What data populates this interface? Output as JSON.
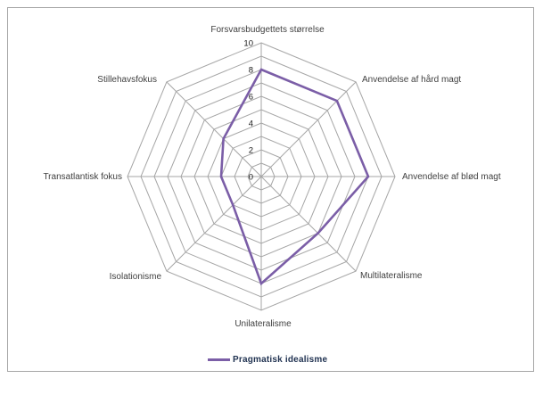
{
  "chart_data": {
    "type": "radar",
    "categories": [
      "Forsvarsbudgettets størrelse",
      "Anvendelse af hård magt",
      "Anvendelse af blød magt",
      "Multilateralisme",
      "Unilateralisme",
      "Isolationisme",
      "Transatlantisk fokus",
      "Stillehavsfokus"
    ],
    "series": [
      {
        "name": "Pragmatisk idealisme",
        "color": "#7B5EA7",
        "values": [
          8,
          8,
          8,
          6,
          8,
          3,
          3,
          4
        ]
      }
    ],
    "axis": {
      "min": 0,
      "max": 10,
      "ring_step": 1,
      "label_step": 2,
      "tick_labels": [
        "0",
        "2",
        "4",
        "6",
        "8",
        "10"
      ]
    },
    "grid": "on",
    "legend": {
      "position": "bottom",
      "entries": [
        {
          "label": "Pragmatisk idealisme",
          "color": "#7B5EA7"
        }
      ]
    }
  },
  "colors": {
    "grid_line": "#A6A6A6",
    "chart_border": "#A6A6A6",
    "category_label": "#404040",
    "tick_label": "#1A1A1A",
    "legend_text": "#1F3150",
    "background": "#FFFFFF"
  }
}
